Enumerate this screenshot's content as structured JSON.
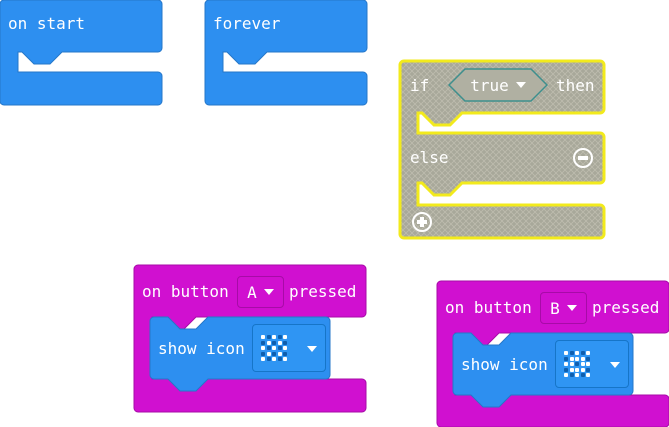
{
  "workspace": {
    "colors": {
      "event_blue": "#2d8ff0",
      "logic_yellow": "#e9e224",
      "logic_stripe": "#a5a89b",
      "input_magenta": "#d010d0",
      "statement_blue": "#2d8ff0"
    }
  },
  "on_start": {
    "label": "on start"
  },
  "forever": {
    "label": "forever"
  },
  "if_block": {
    "if_label": "if",
    "condition_value": "true",
    "then_label": "then",
    "else_label": "else",
    "remove_icon": "minus-circle-icon",
    "add_icon": "plus-circle-icon"
  },
  "button_a_block": {
    "prefix": "on button",
    "button_value": "A",
    "suffix": "pressed",
    "statement": {
      "label": "show icon",
      "icon_name": "checkered-icon",
      "pattern": [
        [
          1,
          0,
          1,
          0,
          1
        ],
        [
          0,
          1,
          0,
          1,
          0
        ],
        [
          1,
          0,
          1,
          0,
          1
        ],
        [
          0,
          1,
          0,
          1,
          0
        ],
        [
          1,
          0,
          1,
          0,
          1
        ]
      ]
    }
  },
  "button_b_block": {
    "prefix": "on button",
    "button_value": "B",
    "suffix": "pressed",
    "statement": {
      "label": "show icon",
      "icon_name": "x-pattern-icon",
      "pattern": [
        [
          1,
          0,
          1,
          0,
          1
        ],
        [
          0,
          1,
          1,
          1,
          0
        ],
        [
          1,
          1,
          0,
          1,
          1
        ],
        [
          0,
          1,
          1,
          1,
          0
        ],
        [
          1,
          0,
          1,
          0,
          1
        ]
      ]
    }
  }
}
